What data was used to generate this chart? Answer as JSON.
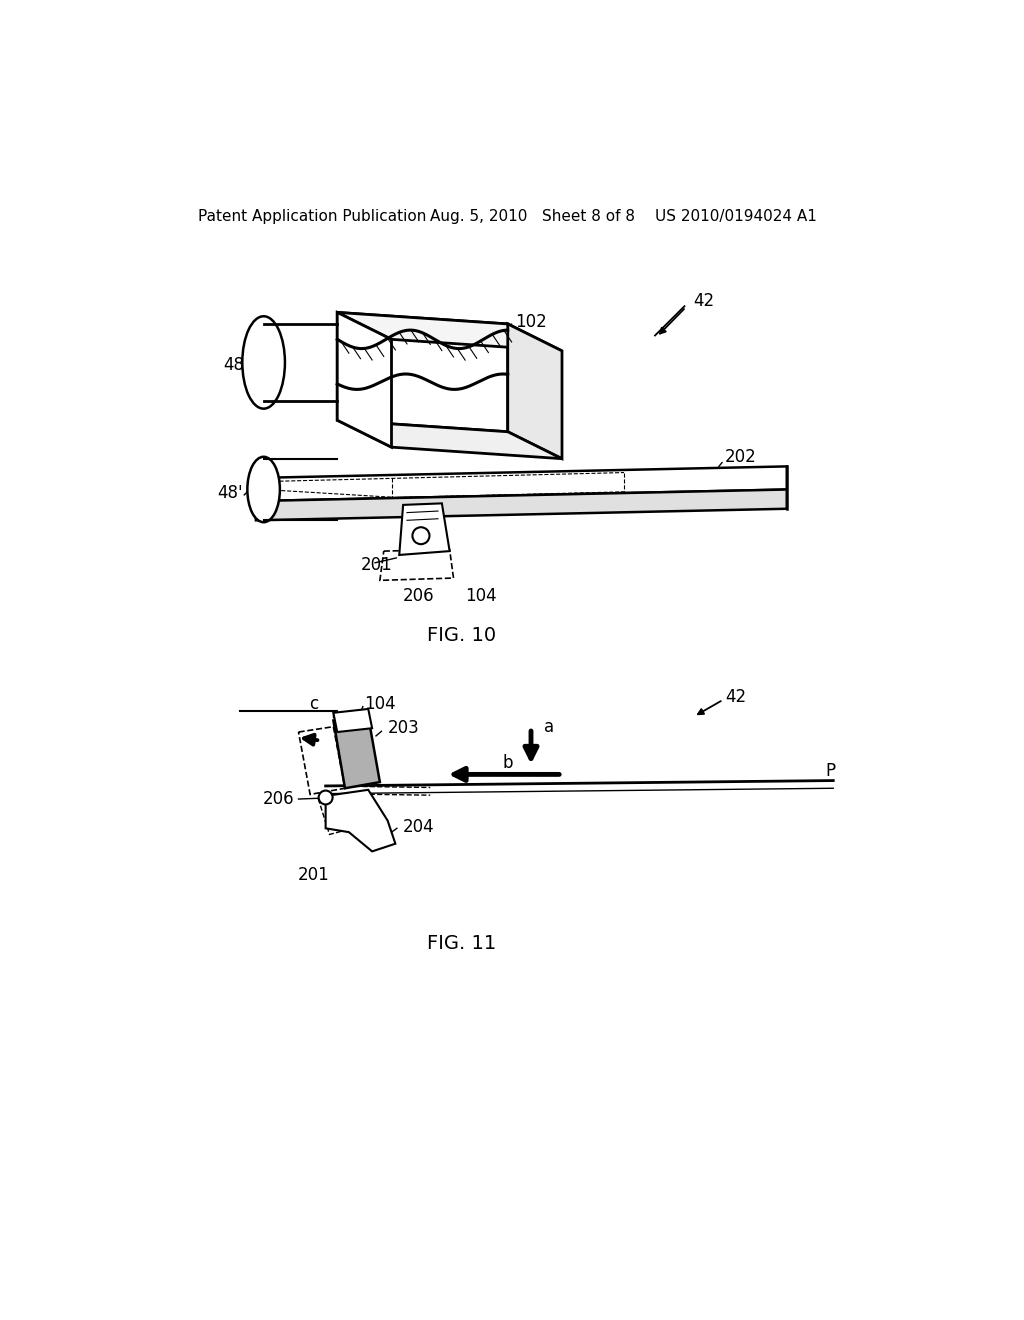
{
  "background_color": "#ffffff",
  "header_left": "Patent Application Publication",
  "header_center": "Aug. 5, 2010   Sheet 8 of 8",
  "header_right": "US 2010/0194024 A1",
  "fig10_label": "FIG. 10",
  "fig11_label": "FIG. 11",
  "text_color": "#000000",
  "line_color": "#000000"
}
